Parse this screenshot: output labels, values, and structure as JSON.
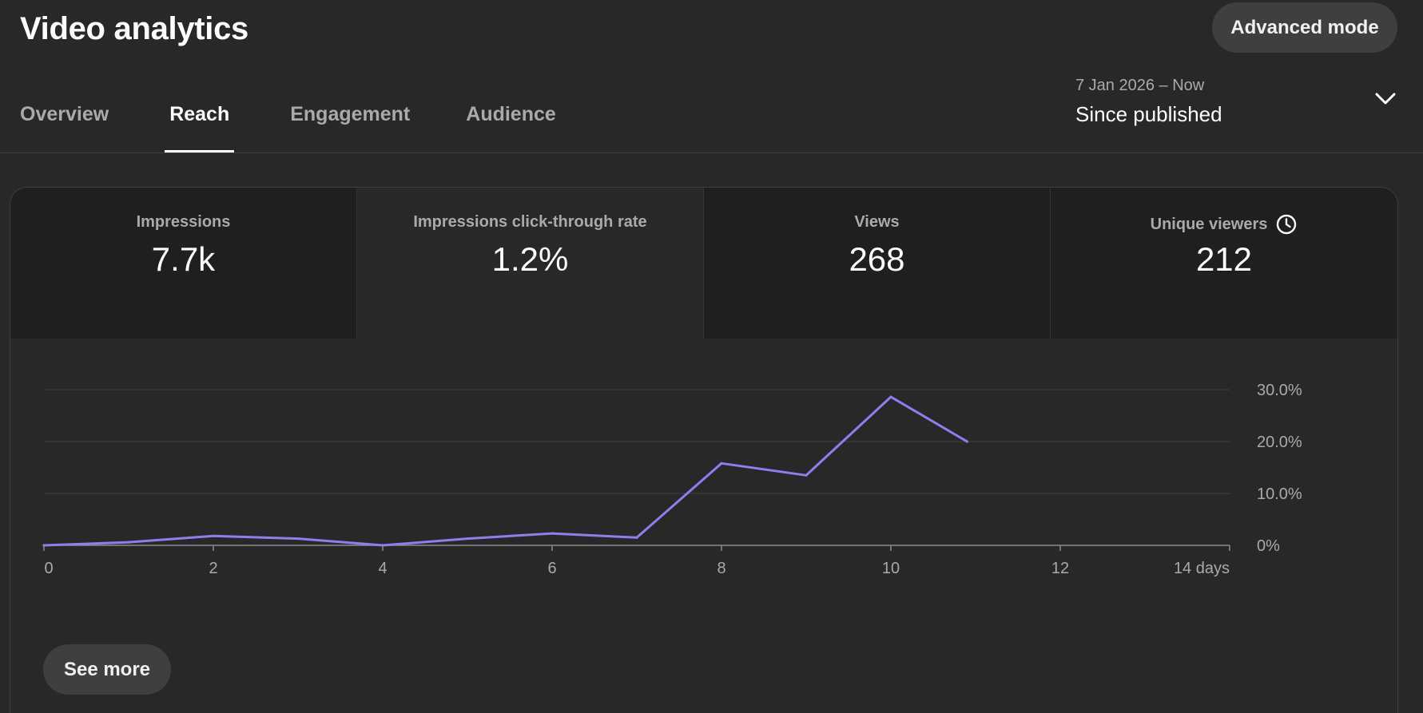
{
  "header": {
    "title": "Video analytics",
    "advanced_mode_label": "Advanced mode"
  },
  "tabs": [
    {
      "label": "Overview",
      "active": false
    },
    {
      "label": "Reach",
      "active": true
    },
    {
      "label": "Engagement",
      "active": false
    },
    {
      "label": "Audience",
      "active": false
    }
  ],
  "date_range": {
    "range": "7 Jan 2026 – Now",
    "label": "Since published",
    "icon": "chevron-down-icon"
  },
  "metrics": [
    {
      "label": "Impressions",
      "value": "7.7k",
      "selected": false
    },
    {
      "label": "Impressions click-through rate",
      "value": "1.2%",
      "selected": true
    },
    {
      "label": "Views",
      "value": "268",
      "selected": false
    },
    {
      "label": "Unique viewers",
      "value": "212",
      "selected": false,
      "icon": "clock-icon"
    }
  ],
  "chart_data": {
    "type": "line",
    "series": [
      {
        "color": "#8b80f0",
        "x": [
          0,
          1,
          2,
          3,
          4,
          5,
          6,
          7,
          8,
          9,
          10,
          10.9
        ],
        "values": [
          0.0,
          0.6,
          1.8,
          1.3,
          0.0,
          1.3,
          2.3,
          1.5,
          15.8,
          13.5,
          28.6,
          20.0
        ]
      }
    ],
    "x_ticks": [
      {
        "value": 0,
        "label": "0"
      },
      {
        "value": 2,
        "label": "2"
      },
      {
        "value": 4,
        "label": "4"
      },
      {
        "value": 6,
        "label": "6"
      },
      {
        "value": 8,
        "label": "8"
      },
      {
        "value": 10,
        "label": "10"
      },
      {
        "value": 12,
        "label": "12"
      },
      {
        "value": 14,
        "label": "14 days"
      }
    ],
    "y_ticks": [
      {
        "value": 0,
        "label": "0%"
      },
      {
        "value": 10,
        "label": "10.0%"
      },
      {
        "value": 20,
        "label": "20.0%"
      },
      {
        "value": 30,
        "label": "30.0%"
      }
    ],
    "xlim": [
      0,
      14
    ],
    "ylim": [
      0,
      30
    ],
    "grid": true,
    "y_axis_side": "right"
  },
  "footer": {
    "see_more_label": "See more"
  }
}
